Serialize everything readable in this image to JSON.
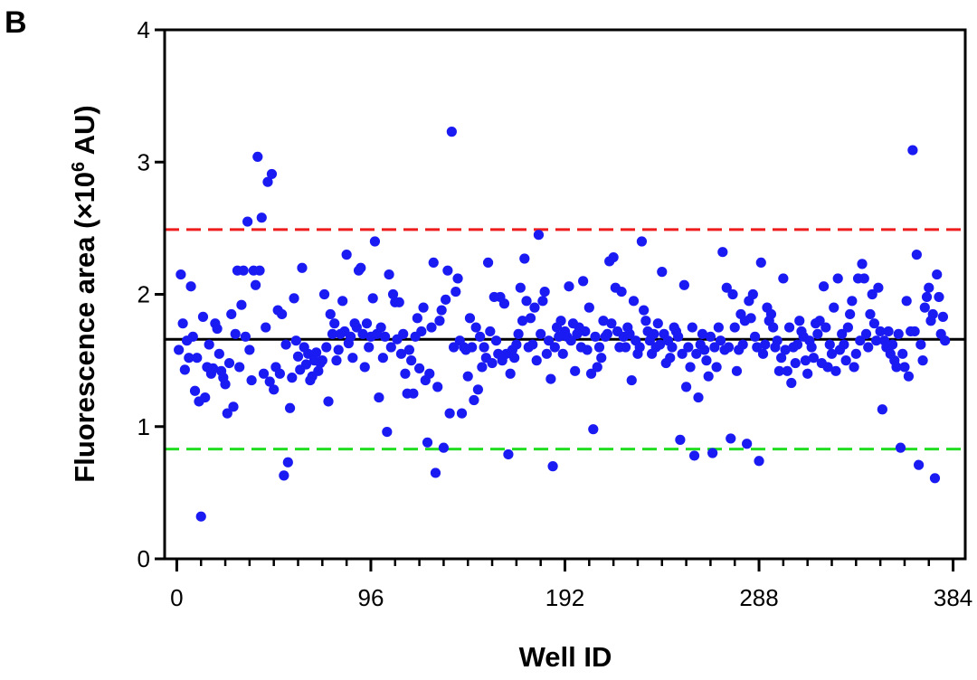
{
  "chart_data": {
    "type": "scatter",
    "panel_label": "B",
    "xlabel": "Well ID",
    "ylabel_text": "Fluorescence area (×10",
    "ylabel_sup": "6",
    "ylabel_unit": " AU)",
    "xlim": [
      -6,
      390
    ],
    "ylim": [
      0,
      4
    ],
    "xticks": [
      0,
      96,
      192,
      288,
      384
    ],
    "xtick_labels": [
      "0",
      "96",
      "192",
      "288",
      "384"
    ],
    "x_minor_step": 12,
    "yticks": [
      0,
      1,
      2,
      3,
      4
    ],
    "ytick_labels": [
      "0",
      "1",
      "2",
      "3",
      "4"
    ],
    "grid": false,
    "point_color": "#1a1af2",
    "reference_lines": [
      {
        "y": 2.49,
        "color": "#ee1c1c",
        "style": "dashed"
      },
      {
        "y": 1.66,
        "color": "#000000",
        "style": "solid"
      },
      {
        "y": 0.83,
        "color": "#22dd22",
        "style": "dashed"
      }
    ],
    "points": [
      [
        1,
        1.58
      ],
      [
        2,
        2.15
      ],
      [
        3,
        1.78
      ],
      [
        4,
        1.43
      ],
      [
        5,
        1.65
      ],
      [
        6,
        1.52
      ],
      [
        7,
        2.06
      ],
      [
        8,
        1.68
      ],
      [
        9,
        1.27
      ],
      [
        10,
        1.52
      ],
      [
        11,
        1.19
      ],
      [
        12,
        0.32
      ],
      [
        13,
        1.83
      ],
      [
        14,
        1.22
      ],
      [
        15,
        1.45
      ],
      [
        16,
        1.62
      ],
      [
        17,
        1.4
      ],
      [
        18,
        1.44
      ],
      [
        19,
        1.78
      ],
      [
        20,
        1.74
      ],
      [
        21,
        1.55
      ],
      [
        22,
        1.42
      ],
      [
        23,
        1.37
      ],
      [
        24,
        1.32
      ],
      [
        25,
        1.1
      ],
      [
        26,
        1.48
      ],
      [
        27,
        1.85
      ],
      [
        28,
        1.15
      ],
      [
        29,
        1.7
      ],
      [
        30,
        2.18
      ],
      [
        31,
        1.45
      ],
      [
        32,
        1.92
      ],
      [
        33,
        2.18
      ],
      [
        34,
        1.68
      ],
      [
        35,
        2.55
      ],
      [
        36,
        1.58
      ],
      [
        37,
        1.35
      ],
      [
        38,
        2.18
      ],
      [
        39,
        2.07
      ],
      [
        40,
        3.04
      ],
      [
        41,
        2.18
      ],
      [
        42,
        2.58
      ],
      [
        43,
        1.4
      ],
      [
        44,
        1.75
      ],
      [
        45,
        2.85
      ],
      [
        46,
        1.34
      ],
      [
        47,
        2.91
      ],
      [
        48,
        1.28
      ],
      [
        49,
        1.45
      ],
      [
        50,
        1.88
      ],
      [
        51,
        1.4
      ],
      [
        52,
        1.85
      ],
      [
        53,
        0.63
      ],
      [
        54,
        1.62
      ],
      [
        55,
        0.73
      ],
      [
        56,
        1.14
      ],
      [
        57,
        1.37
      ],
      [
        58,
        1.97
      ],
      [
        59,
        1.65
      ],
      [
        60,
        1.53
      ],
      [
        61,
        1.43
      ],
      [
        62,
        2.2
      ],
      [
        63,
        1.6
      ],
      [
        64,
        1.47
      ],
      [
        65,
        1.55
      ],
      [
        66,
        1.35
      ],
      [
        67,
        1.38
      ],
      [
        68,
        1.5
      ],
      [
        69,
        1.56
      ],
      [
        70,
        1.42
      ],
      [
        71,
        1.48
      ],
      [
        72,
        1.5
      ],
      [
        73,
        2.0
      ],
      [
        74,
        1.6
      ],
      [
        75,
        1.19
      ],
      [
        76,
        1.85
      ],
      [
        77,
        1.7
      ],
      [
        78,
        1.78
      ],
      [
        79,
        1.5
      ],
      [
        80,
        1.58
      ],
      [
        81,
        1.7
      ],
      [
        82,
        1.95
      ],
      [
        83,
        1.72
      ],
      [
        84,
        2.3
      ],
      [
        85,
        1.63
      ],
      [
        86,
        1.68
      ],
      [
        87,
        1.52
      ],
      [
        88,
        1.78
      ],
      [
        89,
        1.75
      ],
      [
        90,
        2.18
      ],
      [
        91,
        2.2
      ],
      [
        92,
        1.7
      ],
      [
        93,
        1.45
      ],
      [
        94,
        1.78
      ],
      [
        95,
        1.6
      ],
      [
        96,
        1.68
      ],
      [
        97,
        1.97
      ],
      [
        98,
        2.4
      ],
      [
        99,
        1.7
      ],
      [
        100,
        1.22
      ],
      [
        101,
        1.75
      ],
      [
        102,
        1.52
      ],
      [
        103,
        1.68
      ],
      [
        104,
        0.96
      ],
      [
        105,
        2.15
      ],
      [
        106,
        1.6
      ],
      [
        107,
        2.0
      ],
      [
        108,
        1.94
      ],
      [
        109,
        1.66
      ],
      [
        110,
        1.94
      ],
      [
        111,
        1.55
      ],
      [
        112,
        1.7
      ],
      [
        113,
        1.4
      ],
      [
        114,
        1.25
      ],
      [
        115,
        1.58
      ],
      [
        116,
        1.5
      ],
      [
        117,
        1.25
      ],
      [
        118,
        1.68
      ],
      [
        119,
        1.82
      ],
      [
        120,
        1.44
      ],
      [
        121,
        1.72
      ],
      [
        122,
        1.9
      ],
      [
        123,
        1.35
      ],
      [
        124,
        0.88
      ],
      [
        125,
        1.4
      ],
      [
        126,
        1.75
      ],
      [
        127,
        2.24
      ],
      [
        128,
        0.65
      ],
      [
        129,
        1.3
      ],
      [
        130,
        1.8
      ],
      [
        131,
        1.88
      ],
      [
        132,
        0.84
      ],
      [
        133,
        1.96
      ],
      [
        134,
        2.18
      ],
      [
        135,
        1.1
      ],
      [
        136,
        3.23
      ],
      [
        137,
        1.6
      ],
      [
        138,
        2.02
      ],
      [
        139,
        2.12
      ],
      [
        140,
        1.65
      ],
      [
        141,
        1.1
      ],
      [
        142,
        1.6
      ],
      [
        143,
        1.58
      ],
      [
        144,
        1.38
      ],
      [
        145,
        1.82
      ],
      [
        146,
        1.6
      ],
      [
        147,
        1.2
      ],
      [
        148,
        1.75
      ],
      [
        149,
        1.28
      ],
      [
        150,
        1.68
      ],
      [
        151,
        1.45
      ],
      [
        152,
        1.6
      ],
      [
        153,
        1.52
      ],
      [
        154,
        2.24
      ],
      [
        155,
        1.72
      ],
      [
        156,
        1.48
      ],
      [
        157,
        1.98
      ],
      [
        158,
        1.65
      ],
      [
        159,
        1.55
      ],
      [
        160,
        1.98
      ],
      [
        161,
        1.5
      ],
      [
        162,
        1.93
      ],
      [
        163,
        1.55
      ],
      [
        164,
        0.79
      ],
      [
        165,
        1.4
      ],
      [
        166,
        1.58
      ],
      [
        167,
        1.52
      ],
      [
        168,
        1.62
      ],
      [
        169,
        1.7
      ],
      [
        170,
        2.05
      ],
      [
        171,
        1.8
      ],
      [
        172,
        2.27
      ],
      [
        173,
        1.95
      ],
      [
        174,
        1.6
      ],
      [
        175,
        1.82
      ],
      [
        176,
        1.62
      ],
      [
        177,
        1.9
      ],
      [
        178,
        1.5
      ],
      [
        179,
        2.45
      ],
      [
        180,
        1.7
      ],
      [
        181,
        1.95
      ],
      [
        182,
        2.02
      ],
      [
        183,
        1.55
      ],
      [
        184,
        1.65
      ],
      [
        185,
        1.36
      ],
      [
        186,
        0.7
      ],
      [
        187,
        1.6
      ],
      [
        188,
        1.75
      ],
      [
        189,
        1.68
      ],
      [
        190,
        1.8
      ],
      [
        191,
        1.55
      ],
      [
        192,
        1.72
      ],
      [
        193,
        1.68
      ],
      [
        194,
        2.06
      ],
      [
        195,
        1.65
      ],
      [
        196,
        1.78
      ],
      [
        197,
        1.42
      ],
      [
        198,
        1.7
      ],
      [
        199,
        1.75
      ],
      [
        200,
        1.6
      ],
      [
        201,
        2.1
      ],
      [
        202,
        1.72
      ],
      [
        203,
        1.58
      ],
      [
        204,
        1.9
      ],
      [
        205,
        1.4
      ],
      [
        206,
        0.98
      ],
      [
        207,
        1.68
      ],
      [
        208,
        1.45
      ],
      [
        209,
        1.6
      ],
      [
        210,
        1.52
      ],
      [
        211,
        1.8
      ],
      [
        212,
        1.68
      ],
      [
        213,
        1.7
      ],
      [
        214,
        2.25
      ],
      [
        215,
        1.78
      ],
      [
        216,
        2.28
      ],
      [
        217,
        2.05
      ],
      [
        218,
        1.72
      ],
      [
        219,
        1.6
      ],
      [
        220,
        2.02
      ],
      [
        221,
        1.68
      ],
      [
        222,
        1.6
      ],
      [
        223,
        1.75
      ],
      [
        224,
        1.7
      ],
      [
        225,
        1.35
      ],
      [
        226,
        1.95
      ],
      [
        227,
        1.65
      ],
      [
        228,
        1.55
      ],
      [
        229,
        1.6
      ],
      [
        230,
        2.4
      ],
      [
        231,
        1.88
      ],
      [
        232,
        1.8
      ],
      [
        233,
        1.72
      ],
      [
        234,
        1.65
      ],
      [
        235,
        1.55
      ],
      [
        236,
        1.7
      ],
      [
        237,
        1.6
      ],
      [
        238,
        1.78
      ],
      [
        239,
        1.62
      ],
      [
        240,
        2.17
      ],
      [
        241,
        1.7
      ],
      [
        242,
        1.48
      ],
      [
        243,
        1.65
      ],
      [
        244,
        1.52
      ],
      [
        245,
        1.6
      ],
      [
        246,
        1.75
      ],
      [
        247,
        1.72
      ],
      [
        248,
        1.68
      ],
      [
        249,
        0.9
      ],
      [
        250,
        1.55
      ],
      [
        251,
        2.07
      ],
      [
        252,
        1.3
      ],
      [
        253,
        1.6
      ],
      [
        254,
        1.45
      ],
      [
        255,
        1.75
      ],
      [
        256,
        0.78
      ],
      [
        257,
        1.55
      ],
      [
        258,
        1.22
      ],
      [
        259,
        1.62
      ],
      [
        260,
        1.7
      ],
      [
        261,
        1.58
      ],
      [
        262,
        1.5
      ],
      [
        263,
        1.38
      ],
      [
        264,
        1.68
      ],
      [
        265,
        0.8
      ],
      [
        266,
        1.6
      ],
      [
        267,
        1.45
      ],
      [
        268,
        1.75
      ],
      [
        269,
        1.65
      ],
      [
        270,
        2.32
      ],
      [
        271,
        1.58
      ],
      [
        272,
        2.05
      ],
      [
        273,
        1.6
      ],
      [
        274,
        0.91
      ],
      [
        275,
        2.0
      ],
      [
        276,
        1.75
      ],
      [
        277,
        1.42
      ],
      [
        278,
        1.58
      ],
      [
        279,
        1.85
      ],
      [
        280,
        1.62
      ],
      [
        281,
        1.8
      ],
      [
        282,
        0.87
      ],
      [
        283,
        1.95
      ],
      [
        284,
        1.82
      ],
      [
        285,
        2.0
      ],
      [
        286,
        1.68
      ],
      [
        287,
        1.6
      ],
      [
        288,
        0.74
      ],
      [
        289,
        2.24
      ],
      [
        290,
        1.55
      ],
      [
        291,
        1.62
      ],
      [
        292,
        1.9
      ],
      [
        293,
        1.8
      ],
      [
        294,
        1.85
      ],
      [
        295,
        1.75
      ],
      [
        296,
        1.6
      ],
      [
        297,
        1.65
      ],
      [
        298,
        1.42
      ],
      [
        299,
        1.52
      ],
      [
        300,
        2.12
      ],
      [
        301,
        1.58
      ],
      [
        302,
        1.42
      ],
      [
        303,
        1.75
      ],
      [
        304,
        1.33
      ],
      [
        305,
        1.6
      ],
      [
        306,
        1.48
      ],
      [
        307,
        1.62
      ],
      [
        308,
        1.8
      ],
      [
        309,
        1.72
      ],
      [
        310,
        1.68
      ],
      [
        311,
        1.5
      ],
      [
        312,
        1.4
      ],
      [
        313,
        1.65
      ],
      [
        314,
        1.6
      ],
      [
        315,
        1.52
      ],
      [
        316,
        1.78
      ],
      [
        317,
        1.7
      ],
      [
        318,
        1.8
      ],
      [
        319,
        1.48
      ],
      [
        320,
        2.06
      ],
      [
        321,
        1.75
      ],
      [
        322,
        1.45
      ],
      [
        323,
        1.62
      ],
      [
        324,
        1.55
      ],
      [
        325,
        1.9
      ],
      [
        326,
        1.42
      ],
      [
        327,
        2.12
      ],
      [
        328,
        1.58
      ],
      [
        329,
        1.7
      ],
      [
        330,
        1.62
      ],
      [
        331,
        1.5
      ],
      [
        332,
        1.75
      ],
      [
        333,
        1.85
      ],
      [
        334,
        1.95
      ],
      [
        335,
        1.45
      ],
      [
        336,
        1.55
      ],
      [
        337,
        2.12
      ],
      [
        338,
        1.65
      ],
      [
        339,
        2.23
      ],
      [
        340,
        2.12
      ],
      [
        341,
        1.7
      ],
      [
        342,
        1.6
      ],
      [
        343,
        1.85
      ],
      [
        344,
        2.0
      ],
      [
        345,
        1.78
      ],
      [
        346,
        1.65
      ],
      [
        347,
        2.05
      ],
      [
        348,
        1.72
      ],
      [
        349,
        1.13
      ],
      [
        350,
        1.65
      ],
      [
        351,
        1.6
      ],
      [
        352,
        1.72
      ],
      [
        353,
        1.55
      ],
      [
        354,
        1.62
      ],
      [
        355,
        1.5
      ],
      [
        356,
        1.45
      ],
      [
        357,
        1.7
      ],
      [
        358,
        0.84
      ],
      [
        359,
        1.55
      ],
      [
        360,
        1.45
      ],
      [
        361,
        1.95
      ],
      [
        362,
        1.38
      ],
      [
        363,
        1.72
      ],
      [
        364,
        3.09
      ],
      [
        365,
        1.72
      ],
      [
        366,
        2.3
      ],
      [
        367,
        0.71
      ],
      [
        368,
        1.62
      ],
      [
        369,
        1.5
      ],
      [
        370,
        1.9
      ],
      [
        371,
        1.98
      ],
      [
        372,
        2.05
      ],
      [
        373,
        1.8
      ],
      [
        374,
        1.85
      ],
      [
        375,
        0.61
      ],
      [
        376,
        2.15
      ],
      [
        377,
        1.98
      ],
      [
        378,
        1.7
      ],
      [
        379,
        1.83
      ],
      [
        380,
        1.65
      ]
    ]
  }
}
